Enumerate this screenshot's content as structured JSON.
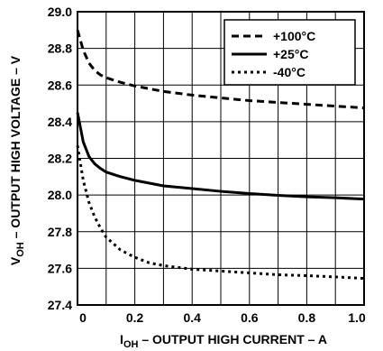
{
  "chart_data": {
    "type": "line",
    "xlabel_main": "I",
    "xlabel_sub": "OH",
    "xlabel_rest": " – OUTPUT HIGH CURRENT – A",
    "ylabel_main": "V",
    "ylabel_sub": "OH",
    "ylabel_rest": " – OUTPUT HIGH VOLTAGE – V",
    "xlim": [
      0,
      1.0
    ],
    "ylim": [
      27.4,
      29.0
    ],
    "x_ticks": [
      "0",
      "0.2",
      "0.4",
      "0.6",
      "0.8",
      "1.0"
    ],
    "y_ticks": [
      "27.4",
      "27.6",
      "27.8",
      "28.0",
      "28.2",
      "28.4",
      "28.6",
      "28.8",
      "29.0"
    ],
    "grid": true,
    "legend_position": "top-right",
    "series": [
      {
        "name": "+100°C",
        "style": "dashed",
        "x": [
          0.0,
          0.02,
          0.04,
          0.06,
          0.08,
          0.1,
          0.15,
          0.2,
          0.3,
          0.4,
          0.5,
          0.6,
          0.7,
          0.8,
          0.9,
          1.0
        ],
        "y": [
          28.9,
          28.79,
          28.72,
          28.68,
          28.655,
          28.64,
          28.615,
          28.595,
          28.565,
          28.545,
          28.53,
          28.515,
          28.505,
          28.495,
          28.485,
          28.475
        ]
      },
      {
        "name": "+25°C",
        "style": "solid",
        "x": [
          0.0,
          0.02,
          0.04,
          0.06,
          0.08,
          0.1,
          0.15,
          0.2,
          0.3,
          0.4,
          0.5,
          0.6,
          0.7,
          0.8,
          0.9,
          1.0
        ],
        "y": [
          28.45,
          28.29,
          28.21,
          28.17,
          28.145,
          28.125,
          28.1,
          28.08,
          28.05,
          28.035,
          28.02,
          28.008,
          27.998,
          27.99,
          27.985,
          27.978
        ]
      },
      {
        "name": "-40°C",
        "style": "dotted",
        "x": [
          0.0,
          0.02,
          0.04,
          0.06,
          0.08,
          0.1,
          0.15,
          0.2,
          0.25,
          0.3,
          0.35,
          0.4,
          0.5,
          0.6,
          0.7,
          0.8,
          0.9,
          1.0
        ],
        "y": [
          28.27,
          28.08,
          27.96,
          27.88,
          27.82,
          27.77,
          27.7,
          27.66,
          27.63,
          27.615,
          27.605,
          27.595,
          27.585,
          27.575,
          27.565,
          27.56,
          27.553,
          27.545
        ]
      }
    ]
  }
}
